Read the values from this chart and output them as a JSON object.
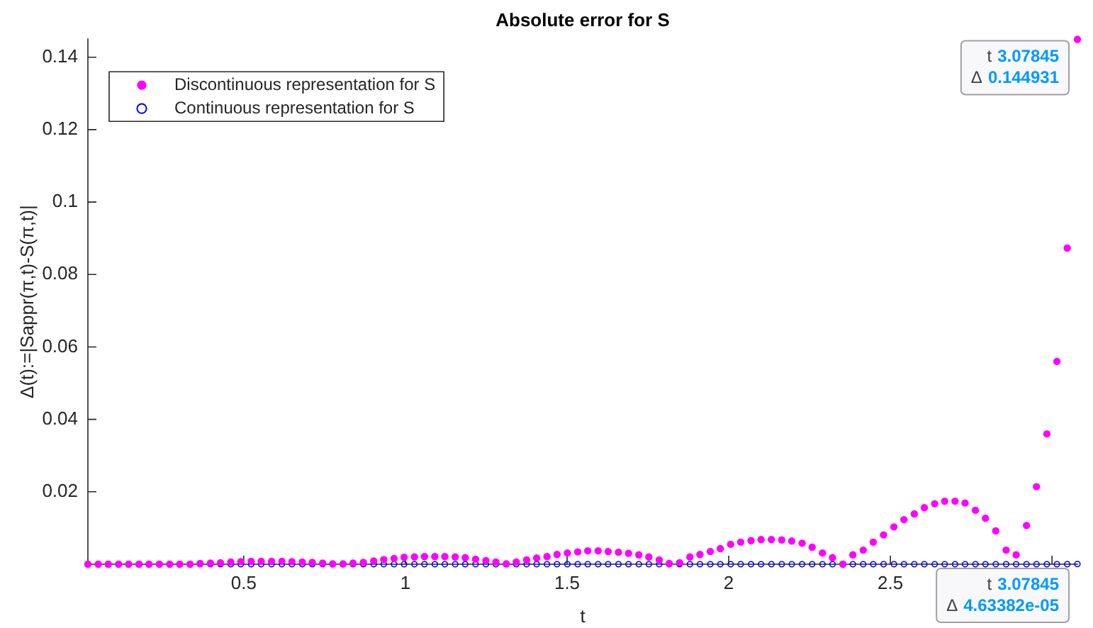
{
  "chart_data": {
    "type": "scatter",
    "title": "Absolute error for S",
    "xlabel": "t",
    "ylabel": "Δ(t):=|Sappr(π,t)-S(π,t)|",
    "x": [
      0.018,
      0.05,
      0.081,
      0.113,
      0.144,
      0.176,
      0.207,
      0.239,
      0.271,
      0.302,
      0.334,
      0.365,
      0.397,
      0.428,
      0.46,
      0.491,
      0.523,
      0.554,
      0.586,
      0.618,
      0.649,
      0.681,
      0.712,
      0.744,
      0.775,
      0.807,
      0.838,
      0.87,
      0.902,
      0.933,
      0.965,
      0.996,
      1.028,
      1.059,
      1.091,
      1.122,
      1.154,
      1.185,
      1.217,
      1.249,
      1.28,
      1.312,
      1.343,
      1.375,
      1.406,
      1.438,
      1.469,
      1.501,
      1.533,
      1.564,
      1.596,
      1.627,
      1.659,
      1.69,
      1.722,
      1.753,
      1.785,
      1.816,
      1.848,
      1.88,
      1.911,
      1.943,
      1.974,
      2.006,
      2.037,
      2.069,
      2.1,
      2.132,
      2.164,
      2.195,
      2.227,
      2.258,
      2.29,
      2.321,
      2.353,
      2.384,
      2.416,
      2.447,
      2.479,
      2.511,
      2.542,
      2.574,
      2.605,
      2.637,
      2.668,
      2.7,
      2.731,
      2.763,
      2.794,
      2.826,
      2.858,
      2.889,
      2.921,
      2.952,
      2.984,
      3.015,
      3.047,
      3.07845
    ],
    "series": [
      {
        "name": "Discontinuous representation for S",
        "color": "#ff00ff",
        "values": [
          0,
          0,
          0,
          0,
          0,
          0,
          0,
          0,
          0,
          0,
          0,
          0.0002,
          0.0003,
          0.0004,
          0.0006,
          0.0007,
          0.0008,
          0.0008,
          0.0008,
          0.0008,
          0.0007,
          0.0006,
          0.0005,
          0.0003,
          0.0001,
          0.0001,
          0.0003,
          0.0005,
          0.0009,
          0.0013,
          0.0016,
          0.0019,
          0.002,
          0.0021,
          0.0021,
          0.0021,
          0.002,
          0.0018,
          0.0014,
          0.001,
          0.0006,
          0.0001,
          0.0006,
          0.0012,
          0.0017,
          0.0021,
          0.0027,
          0.0031,
          0.0034,
          0.0037,
          0.0037,
          0.0035,
          0.0033,
          0.003,
          0.0026,
          0.002,
          0.0012,
          0.0002,
          0.0004,
          0.002,
          0.0027,
          0.0035,
          0.0043,
          0.0055,
          0.0061,
          0.0065,
          0.0068,
          0.0068,
          0.0067,
          0.0064,
          0.0058,
          0.0047,
          0.0031,
          0.0018,
          0,
          0.0026,
          0.0039,
          0.0061,
          0.0081,
          0.0103,
          0.0123,
          0.0139,
          0.0156,
          0.0167,
          0.0174,
          0.0174,
          0.0169,
          0.0149,
          0.0127,
          0.0092,
          0.0039,
          0.0026,
          0.0107,
          0.0214,
          0.036,
          0.056,
          0.0873,
          0.144931
        ]
      },
      {
        "name": "Continuous representation for S",
        "color": "#0000ff",
        "values": [
          0,
          0,
          0,
          0,
          0,
          0,
          0,
          0,
          0,
          0,
          0,
          0,
          0,
          0,
          0,
          0,
          0,
          0,
          0,
          0,
          0,
          0,
          0,
          0,
          0,
          0,
          0,
          0,
          0,
          0,
          0,
          0,
          0,
          0,
          0,
          0,
          0,
          0,
          0,
          0,
          0,
          0,
          0,
          0,
          0,
          0,
          0,
          0,
          0,
          0,
          0,
          0,
          0,
          0,
          0,
          0,
          0,
          0,
          0,
          0,
          0,
          0,
          0,
          0,
          0,
          0,
          0,
          0,
          0,
          0,
          0,
          0,
          0,
          0,
          0,
          0,
          0,
          0,
          0,
          0,
          0,
          0,
          0,
          0,
          0,
          0,
          0,
          0,
          0,
          0,
          0,
          0,
          0,
          0,
          0,
          0,
          0,
          4.63382e-05
        ]
      }
    ],
    "xlim": [
      0.018,
      3.07845
    ],
    "ylim": [
      0,
      0.145
    ],
    "xticks": [
      0.5,
      1,
      1.5,
      2,
      2.5,
      {
        "value": 3,
        "label": null
      }
    ],
    "yticks": [
      0.02,
      0.04,
      0.06,
      0.08,
      0.1,
      0.12,
      0.14
    ],
    "legend": "top left",
    "marker": "circle",
    "annotations": [
      {
        "text": "t 3.07845\nΔ 0.144931",
        "x": 3.07845,
        "y": 0.144931
      },
      "t 3.07845\nΔ 4.63382e-05"
    ]
  }
}
